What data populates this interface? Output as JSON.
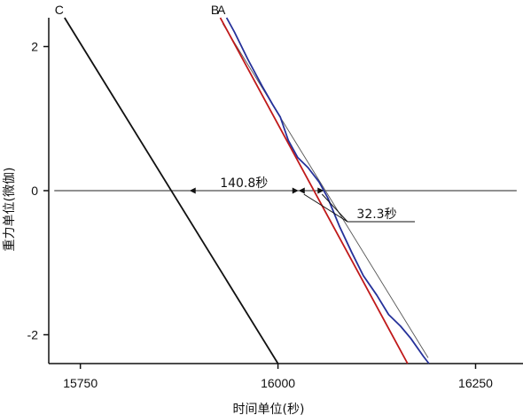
{
  "chart_data": {
    "type": "line",
    "xlabel": "时间单位(秒)",
    "ylabel": "重力单位(微伽)",
    "xlim": [
      15710,
      16310
    ],
    "ylim": [
      -2.4,
      2.4
    ],
    "xticks": [
      15750,
      16000,
      16250
    ],
    "yticks": [
      -2,
      0,
      2
    ],
    "grid": false,
    "series": [
      {
        "name": "C",
        "color": "#111111",
        "points": [
          [
            15730,
            2.4
          ],
          [
            16000,
            -2.4
          ]
        ]
      },
      {
        "name": "B",
        "color": "#c0191a",
        "points": [
          [
            15927,
            2.4
          ],
          [
            16164,
            -2.4
          ]
        ]
      },
      {
        "name": "A",
        "color": "#25319a",
        "points": [
          [
            15935,
            2.4
          ],
          [
            15945,
            2.2
          ],
          [
            15962,
            1.82
          ],
          [
            15980,
            1.45
          ],
          [
            15993,
            1.2
          ],
          [
            16003,
            1.02
          ],
          [
            16013,
            0.7
          ],
          [
            16025,
            0.46
          ],
          [
            16038,
            0.32
          ],
          [
            16052,
            0.12
          ],
          [
            16063,
            -0.1
          ],
          [
            16078,
            -0.5
          ],
          [
            16093,
            -0.85
          ],
          [
            16108,
            -1.18
          ],
          [
            16125,
            -1.45
          ],
          [
            16140,
            -1.72
          ],
          [
            16155,
            -1.88
          ],
          [
            16168,
            -2.05
          ],
          [
            16184,
            -2.3
          ],
          [
            16191,
            -2.4
          ]
        ]
      }
    ],
    "fit_line": {
      "color": "#555555",
      "points": [
        [
          15930,
          2.32
        ],
        [
          16190,
          -2.32
        ]
      ]
    },
    "reference_line": {
      "y": 0,
      "x_from": 15717,
      "x_to": 16302
    },
    "annotations": [
      {
        "text": "140.8秒",
        "from_x": 15888,
        "to_x": 16026
      },
      {
        "text": "32.3秒",
        "from_x": 16026,
        "to_x": 16058
      }
    ]
  }
}
